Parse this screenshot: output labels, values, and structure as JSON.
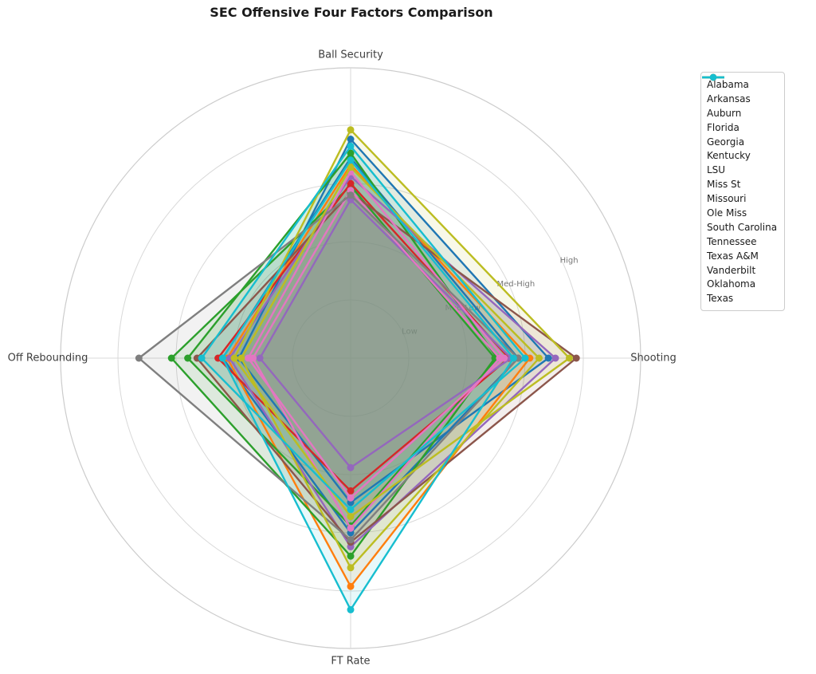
{
  "chart_data": {
    "type": "radar",
    "title": "SEC Offensive Four Factors Comparison",
    "axes": [
      "Ball Security",
      "Shooting",
      "FT Rate",
      "Off Rebounding"
    ],
    "radial_ticks": [
      {
        "label": "Low",
        "value": 0.25
      },
      {
        "label": "Med-Low",
        "value": 0.5
      },
      {
        "label": "Med-High",
        "value": 0.75
      },
      {
        "label": "High",
        "value": 1.0
      }
    ],
    "r_max": 1.25,
    "grid": true,
    "legend_position": "upper right",
    "series": [
      {
        "name": "Alabama",
        "color": "#1f77b4",
        "values": [
          0.94,
          0.85,
          0.62,
          0.48
        ]
      },
      {
        "name": "Arkansas",
        "color": "#1f77b4",
        "values": [
          0.86,
          0.72,
          0.75,
          0.55
        ]
      },
      {
        "name": "Auburn",
        "color": "#ff7f0e",
        "values": [
          0.83,
          0.77,
          0.98,
          0.53
        ]
      },
      {
        "name": "Florida",
        "color": "#2ca02c",
        "values": [
          0.88,
          0.63,
          0.72,
          0.7
        ]
      },
      {
        "name": "Georgia",
        "color": "#2ca02c",
        "values": [
          0.74,
          0.62,
          0.85,
          0.77
        ]
      },
      {
        "name": "Kentucky",
        "color": "#d62728",
        "values": [
          0.75,
          0.68,
          0.57,
          0.57
        ]
      },
      {
        "name": "LSU",
        "color": "#9467bd",
        "values": [
          0.68,
          0.69,
          0.47,
          0.39
        ]
      },
      {
        "name": "Miss St",
        "color": "#9467bd",
        "values": [
          0.78,
          0.88,
          0.81,
          0.52
        ]
      },
      {
        "name": "Missouri",
        "color": "#8c564b",
        "values": [
          0.71,
          0.97,
          0.79,
          0.66
        ]
      },
      {
        "name": "Ole Miss",
        "color": "#e377c2",
        "values": [
          0.8,
          0.66,
          0.6,
          0.44
        ]
      },
      {
        "name": "South Carolina",
        "color": "#e377c2",
        "values": [
          0.72,
          0.64,
          0.73,
          0.42
        ]
      },
      {
        "name": "Tennessee",
        "color": "#7f7f7f",
        "values": [
          0.7,
          0.72,
          0.78,
          0.91
        ]
      },
      {
        "name": "Texas A&M",
        "color": "#bcbd22",
        "values": [
          0.98,
          0.94,
          0.68,
          0.5
        ]
      },
      {
        "name": "Vanderbilt",
        "color": "#bcbd22",
        "values": [
          0.82,
          0.81,
          0.9,
          0.47
        ]
      },
      {
        "name": "Oklahoma",
        "color": "#17becf",
        "values": [
          0.91,
          0.75,
          0.65,
          0.64
        ]
      },
      {
        "name": "Texas",
        "color": "#17becf",
        "values": [
          0.85,
          0.7,
          1.08,
          0.55
        ]
      }
    ],
    "style": {
      "grid_color": "#d9d9d9",
      "spine_color": "#cccccc",
      "fill_opacity": 0.1,
      "line_width": 2.4,
      "marker_radius": 4.5
    }
  }
}
